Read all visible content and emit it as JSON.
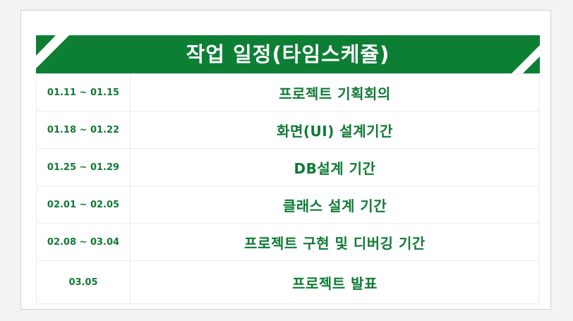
{
  "colors": {
    "accent": "#0d7f35",
    "text": "#107a36",
    "background": "#f3f3f3",
    "card": "#ffffff",
    "border": "#ececec"
  },
  "header": {
    "title": "작업 일정(타임스케쥴)"
  },
  "schedule": [
    {
      "period": "01.11 ~ 01.15",
      "task": "프로젝트 기획회의"
    },
    {
      "period": "01.18 ~ 01.22",
      "task": "화면(UI) 설계기간"
    },
    {
      "period": "01.25 ~ 01.29",
      "task": "DB설계 기간"
    },
    {
      "period": "02.01 ~ 02.05",
      "task": "클래스 설계 기간"
    },
    {
      "period": "02.08 ~ 03.04",
      "task": "프로젝트 구현 및 디버깅 기간"
    },
    {
      "period": "03.05",
      "task": "프로젝트 발표"
    }
  ]
}
